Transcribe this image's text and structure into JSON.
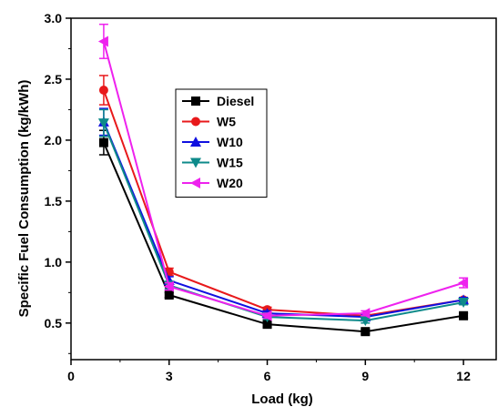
{
  "chart_data": {
    "type": "line",
    "title": "",
    "xlabel": "Load (kg)",
    "ylabel": "Specific Fuel Consumption (kg/kWh)",
    "xlim": [
      0,
      13
    ],
    "ylim": [
      0.2,
      3.0
    ],
    "xticks": [
      0,
      3,
      6,
      9,
      12
    ],
    "xtick_labels": [
      "0",
      "3",
      "6",
      "9",
      "12"
    ],
    "yticks": [
      0.5,
      1.0,
      1.5,
      2.0,
      2.5,
      3.0
    ],
    "ytick_labels": [
      "0.5",
      "1.0",
      "1.5",
      "2.0",
      "2.5",
      "3.0"
    ],
    "grid": false,
    "legend_position": "upper-center",
    "x": [
      1,
      3,
      6,
      9,
      12
    ],
    "series": [
      {
        "name": "Diesel",
        "color": "#000000",
        "marker": "square",
        "values": [
          1.98,
          0.73,
          0.49,
          0.43,
          0.56
        ],
        "errors": [
          0.1,
          0.02,
          0.02,
          0.02,
          0.02
        ]
      },
      {
        "name": "W5",
        "color": "#e8191b",
        "marker": "circle",
        "values": [
          2.41,
          0.92,
          0.61,
          0.56,
          0.69
        ],
        "errors": [
          0.12,
          0.03,
          0.02,
          0.02,
          0.02
        ]
      },
      {
        "name": "W10",
        "color": "#1010e0",
        "marker": "triangle-up",
        "values": [
          2.15,
          0.85,
          0.58,
          0.55,
          0.69
        ],
        "errors": [
          0.11,
          0.03,
          0.02,
          0.02,
          0.02
        ]
      },
      {
        "name": "W15",
        "color": "#0e8a8a",
        "marker": "triangle-down",
        "values": [
          2.14,
          0.81,
          0.55,
          0.52,
          0.67
        ],
        "errors": [
          0.11,
          0.03,
          0.02,
          0.02,
          0.02
        ]
      },
      {
        "name": "W20",
        "color": "#ee22ee",
        "marker": "triangle-left",
        "values": [
          2.81,
          0.8,
          0.56,
          0.58,
          0.83
        ],
        "errors": [
          0.14,
          0.03,
          0.02,
          0.02,
          0.04
        ]
      }
    ]
  }
}
